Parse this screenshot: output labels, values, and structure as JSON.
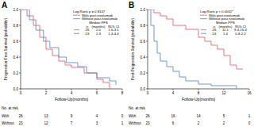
{
  "chart_data": [
    {
      "type": "line",
      "title": "A",
      "x_label": "Follow-Up(months)",
      "y_label": "Progression-Free Survival (probability)",
      "xlim": [
        0,
        8
      ],
      "xticks": [
        0,
        2,
        4,
        6,
        8
      ],
      "ylim": [
        0,
        1
      ],
      "yticks": [
        {
          "value": 0,
          "label": "0.0"
        },
        {
          "value": 0.2,
          "label": "0.2"
        },
        {
          "value": 0.4,
          "label": "0.4"
        },
        {
          "value": 0.6,
          "label": "0.6"
        },
        {
          "value": 0.8,
          "label": "0.8"
        },
        {
          "value": 1,
          "label": "1.0"
        }
      ],
      "line_style": "step",
      "legend": "top right",
      "annotation": "Log-Rank p = 0.8147",
      "series": [
        {
          "name": "With post-nivolumab",
          "color": "#e8505b",
          "x": [
            0,
            0.5,
            1,
            1.5,
            2,
            2.5,
            3,
            3.5,
            4,
            5,
            6,
            6.5,
            7
          ],
          "values": [
            1,
            0.92,
            0.8,
            0.65,
            0.5,
            0.42,
            0.35,
            0.3,
            0.27,
            0.2,
            0.12,
            0.08,
            0
          ]
        },
        {
          "name": "Without post-nivolumab",
          "color": "#4a7fd8",
          "x": [
            0,
            0.7,
            1.2,
            1.8,
            2.3,
            3,
            3.6,
            4.5,
            5.2,
            6,
            7,
            7.5
          ],
          "values": [
            1,
            0.87,
            0.74,
            0.6,
            0.52,
            0.4,
            0.33,
            0.28,
            0.2,
            0.14,
            0.1,
            0.05
          ]
        }
      ],
      "median_table": {
        "title": "Median PFS",
        "columns": [
          "n",
          "(months)",
          "95% CI"
        ],
        "rows": [
          [
            "26",
            "2.0",
            "1.6-3.1"
          ],
          [
            "23",
            "2.3",
            "1.4-4.4"
          ]
        ]
      },
      "at_risk": {
        "title": "No. at risk",
        "rows": [
          {
            "label": "With",
            "values": [
              26,
              13,
              9,
              4,
              0
            ]
          },
          {
            "label": "Without",
            "values": [
              23,
              12,
              7,
              3,
              1
            ]
          }
        ]
      }
    },
    {
      "type": "line",
      "title": "B",
      "x_label": "Follow-Up(months)",
      "y_label": "Post-Progression Survival (probability)",
      "xlim": [
        0,
        16
      ],
      "xticks": [
        0,
        4,
        8,
        12,
        16
      ],
      "ylim": [
        0,
        1
      ],
      "yticks": [
        {
          "value": 0,
          "label": "0.0"
        },
        {
          "value": 0.2,
          "label": "0.2"
        },
        {
          "value": 0.4,
          "label": "0.4"
        },
        {
          "value": 0.6,
          "label": "0.6"
        },
        {
          "value": 0.8,
          "label": "0.8"
        },
        {
          "value": 1,
          "label": "1.0"
        }
      ],
      "line_style": "step",
      "legend": "top right",
      "annotation": "Log-Rank p < 0.0001*",
      "series": [
        {
          "name": "With post-nivolumab",
          "color": "#e8505b",
          "x": [
            0,
            1,
            2,
            3,
            4,
            6,
            8,
            9,
            10,
            11,
            12,
            13,
            14,
            15
          ],
          "values": [
            1,
            0.96,
            0.92,
            0.88,
            0.8,
            0.75,
            0.65,
            0.6,
            0.55,
            0.5,
            0.42,
            0.3,
            0.25,
            0.25
          ]
        },
        {
          "name": "Without post-nivolumab",
          "color": "#4a7fd8",
          "x": [
            0,
            0.5,
            1,
            1.5,
            2,
            3,
            4,
            5,
            6,
            8,
            10,
            12,
            14
          ],
          "values": [
            1,
            0.8,
            0.6,
            0.45,
            0.35,
            0.28,
            0.22,
            0.15,
            0.1,
            0.06,
            0.04,
            0.04,
            0
          ]
        }
      ],
      "median_table": {
        "title": "Median PPS",
        "columns": [
          "n",
          "(months)",
          "95% CI"
        ],
        "rows": [
          [
            "26",
            "11.1",
            "9.4-16.4"
          ],
          [
            "23",
            "1.4",
            "0.8-2.2"
          ]
        ]
      },
      "at_risk": {
        "title": "No. at risk",
        "rows": [
          {
            "label": "With",
            "values": [
              26,
              16,
              14,
              5,
              1
            ]
          },
          {
            "label": "Without",
            "values": [
              23,
              6,
              2,
              2,
              0
            ]
          }
        ]
      }
    }
  ]
}
